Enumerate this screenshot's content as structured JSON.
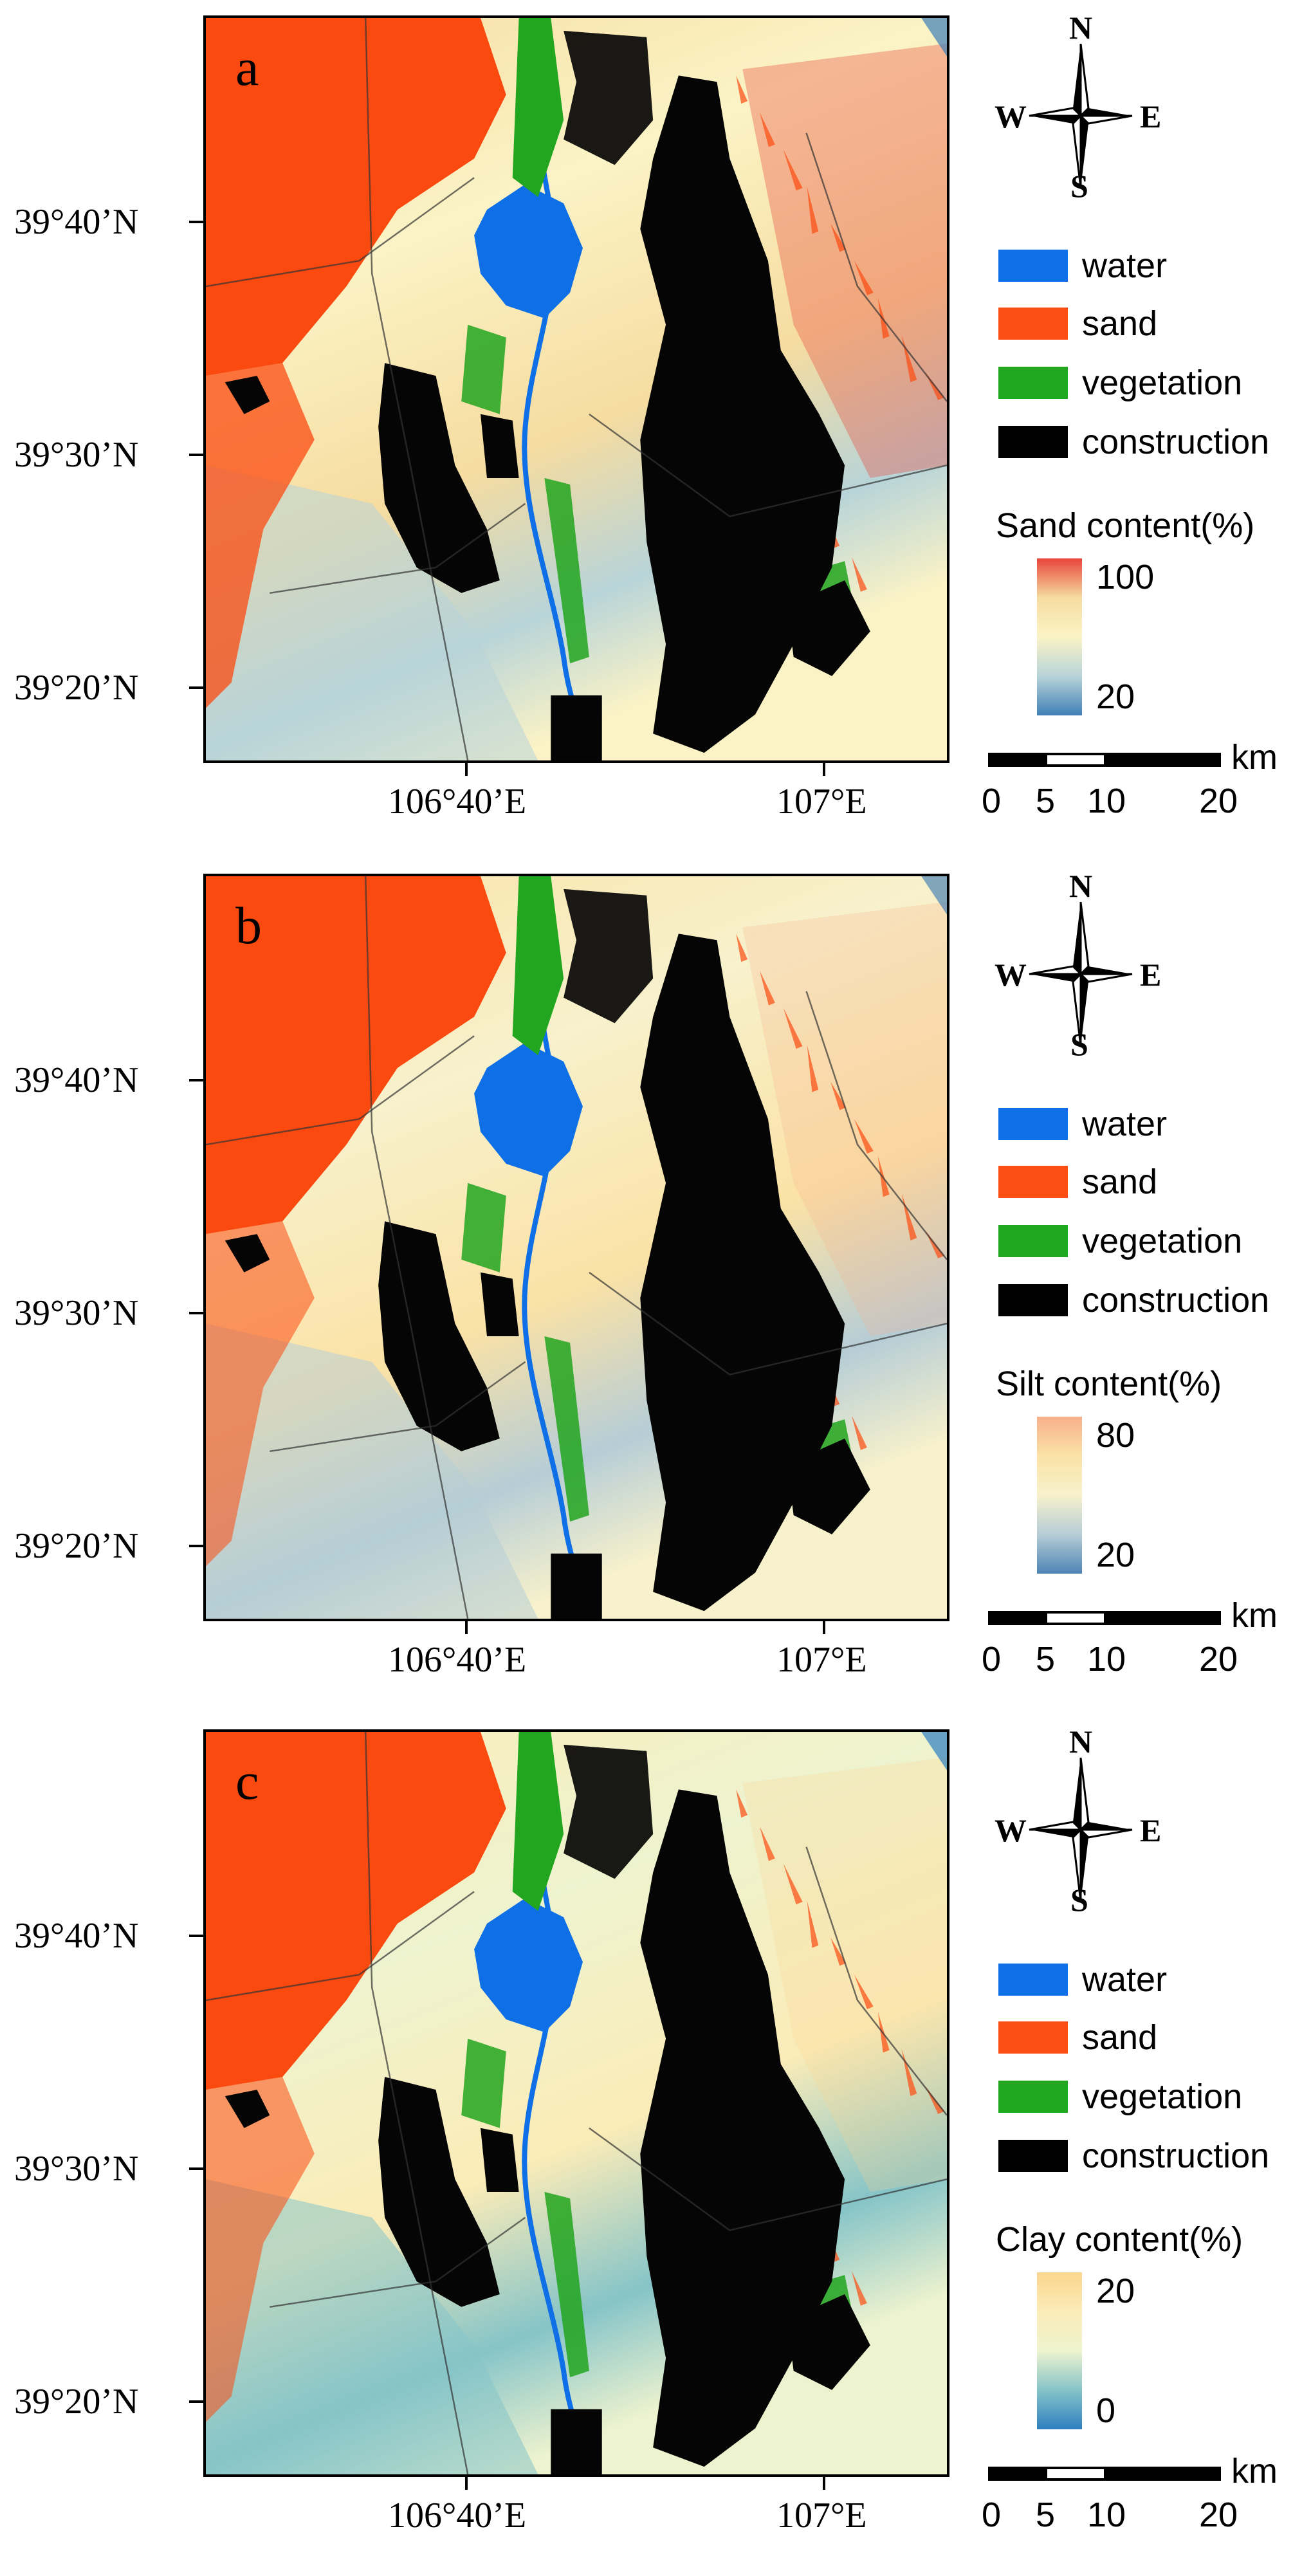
{
  "panels": [
    {
      "letter": "a",
      "colorbar_title": "Sand content(%)",
      "cb_max": "100",
      "cb_min": "20",
      "ramp": [
        "#e8453a",
        "#f6dca0",
        "#fbf3c6",
        "#b8d4d8",
        "#3f7fb6"
      ]
    },
    {
      "letter": "b",
      "colorbar_title": "Silt content(%)",
      "cb_max": "80",
      "cb_min": "20",
      "ramp": [
        "#f7b08c",
        "#fbe2a6",
        "#f7f1cc",
        "#b6cdd6",
        "#4e84b4"
      ]
    },
    {
      "letter": "c",
      "colorbar_title": "Clay content(%)",
      "cb_max": "20",
      "cb_min": "0",
      "ramp": [
        "#fbd58e",
        "#fbecb8",
        "#eef3cf",
        "#86c4c8",
        "#2e7fc0"
      ]
    }
  ],
  "lat_labels": [
    "39°40’N",
    "39°30’N",
    "39°20’N"
  ],
  "lon_labels": [
    "106°40’E",
    "107°E"
  ],
  "compass": {
    "n": "N",
    "s": "S",
    "e": "E",
    "w": "W"
  },
  "legend": [
    {
      "label": "water",
      "color": "#0f6fe6"
    },
    {
      "label": "sand",
      "color": "#fb4e14"
    },
    {
      "label": "vegetation",
      "color": "#1fa81d"
    },
    {
      "label": "construction",
      "color": "#000000"
    }
  ],
  "scale": {
    "unit": "km",
    "ticks": [
      "0",
      "5",
      "10",
      "20"
    ]
  },
  "map_colors": {
    "sand_class": "#fb4a10",
    "water": "#0f6fe6",
    "vegetation": "#22a51f",
    "construction": "#050505"
  }
}
